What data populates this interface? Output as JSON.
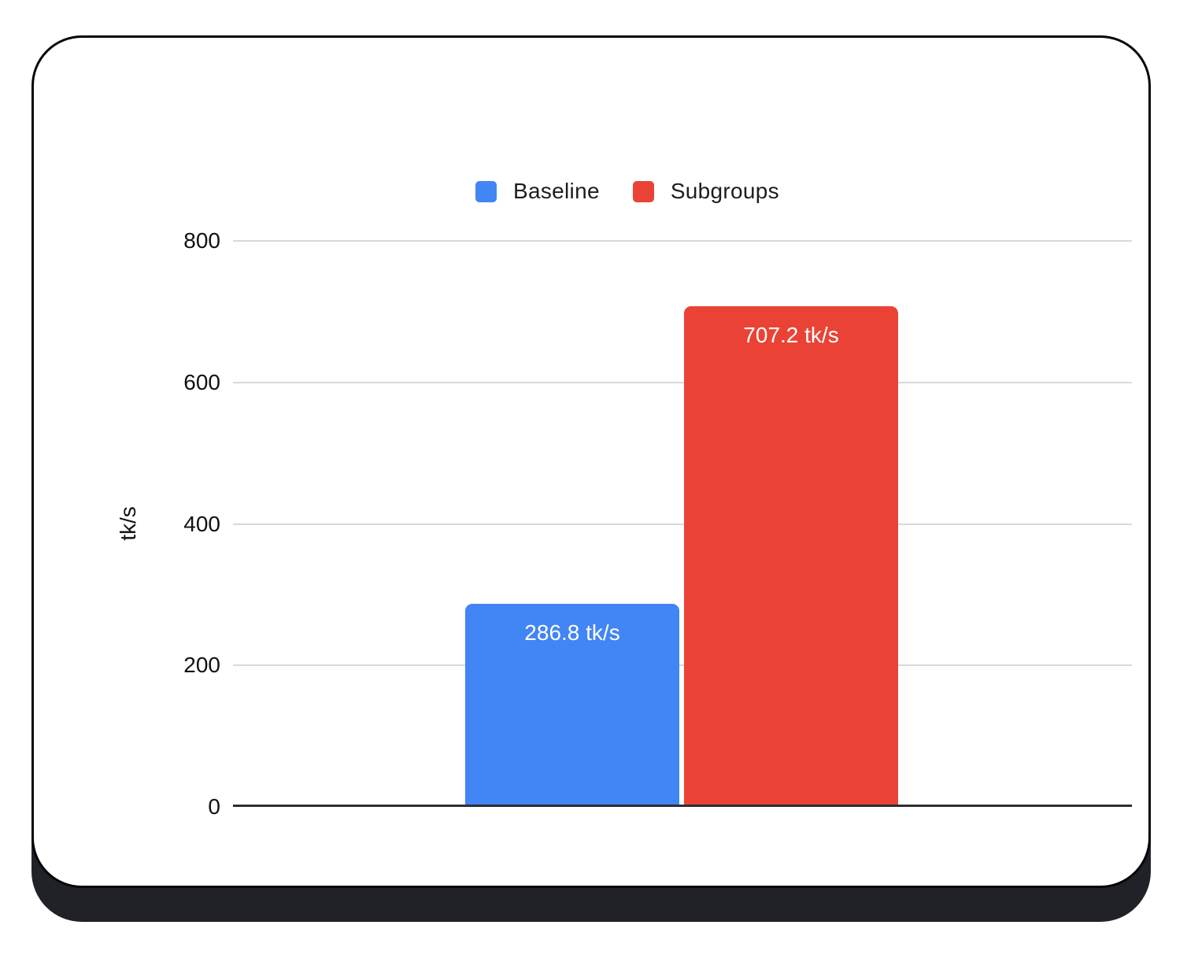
{
  "colors": {
    "baseline_blue": "#4285F4",
    "subgroups_red": "#EA4335",
    "card_shadow": "#202228",
    "card_border": "#050505",
    "gridline": "#D9D9D9",
    "axis_line": "#2B2E33",
    "tick_text": "#111111",
    "bar_label_text": "#FFFFFF"
  },
  "legend": {
    "position": "top",
    "items": [
      {
        "label": "Baseline",
        "color": "#4285F4"
      },
      {
        "label": "Subgroups",
        "color": "#EA4335"
      }
    ]
  },
  "chart_data": {
    "type": "bar",
    "categories": [
      ""
    ],
    "series": [
      {
        "name": "Baseline",
        "values": [
          286.8
        ],
        "color": "#4285F4",
        "data_label": "286.8 tk/s"
      },
      {
        "name": "Subgroups",
        "values": [
          707.2
        ],
        "color": "#EA4335",
        "data_label": "707.2 tk/s"
      }
    ],
    "title": "",
    "xlabel": "",
    "ylabel": "tk/s",
    "ylim": [
      0,
      800
    ],
    "yticks": [
      0,
      200,
      400,
      600,
      800
    ],
    "grid": true,
    "legend_position": "top",
    "bar_labels_inside_top": true
  }
}
